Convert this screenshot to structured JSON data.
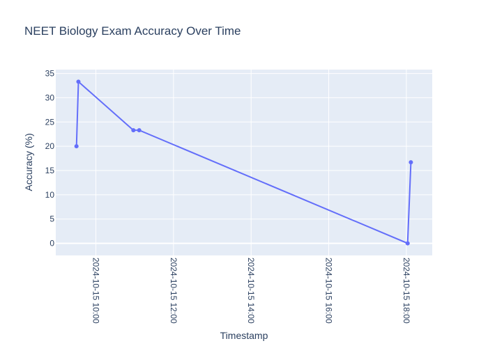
{
  "chart_data": {
    "type": "line",
    "title": "NEET Biology Exam Accuracy Over Time",
    "xlabel": "Timestamp",
    "ylabel": "Accuracy (%)",
    "x_tick_labels": [
      "2024-10-15 10:00",
      "2024-10-15 12:00",
      "2024-10-15 14:00",
      "2024-10-15 16:00",
      "2024-10-15 18:00"
    ],
    "x_ticks": [
      "2024-10-15T10:00:00",
      "2024-10-15T12:00:00",
      "2024-10-15T14:00:00",
      "2024-10-15T16:00:00",
      "2024-10-15T18:00:00"
    ],
    "xlim": [
      "2024-10-15T08:58:00",
      "2024-10-15T18:40:00"
    ],
    "y_ticks": [
      0,
      5,
      10,
      15,
      20,
      25,
      30,
      35
    ],
    "ylim": [
      -2.5,
      35.8
    ],
    "grid": true,
    "colors": {
      "line": "#636efa",
      "plot_bg": "#e5ecf6",
      "grid": "#ffffff",
      "text": "#2a3f5f"
    },
    "series": [
      {
        "x": [
          "2024-10-15T09:30:00",
          "2024-10-15T09:33:00",
          "2024-10-15T10:58:00",
          "2024-10-15T11:07:00",
          "2024-10-15T18:02:00",
          "2024-10-15T18:07:00"
        ],
        "values": [
          20,
          33.3,
          23.3,
          23.3,
          0,
          16.7
        ]
      }
    ]
  }
}
